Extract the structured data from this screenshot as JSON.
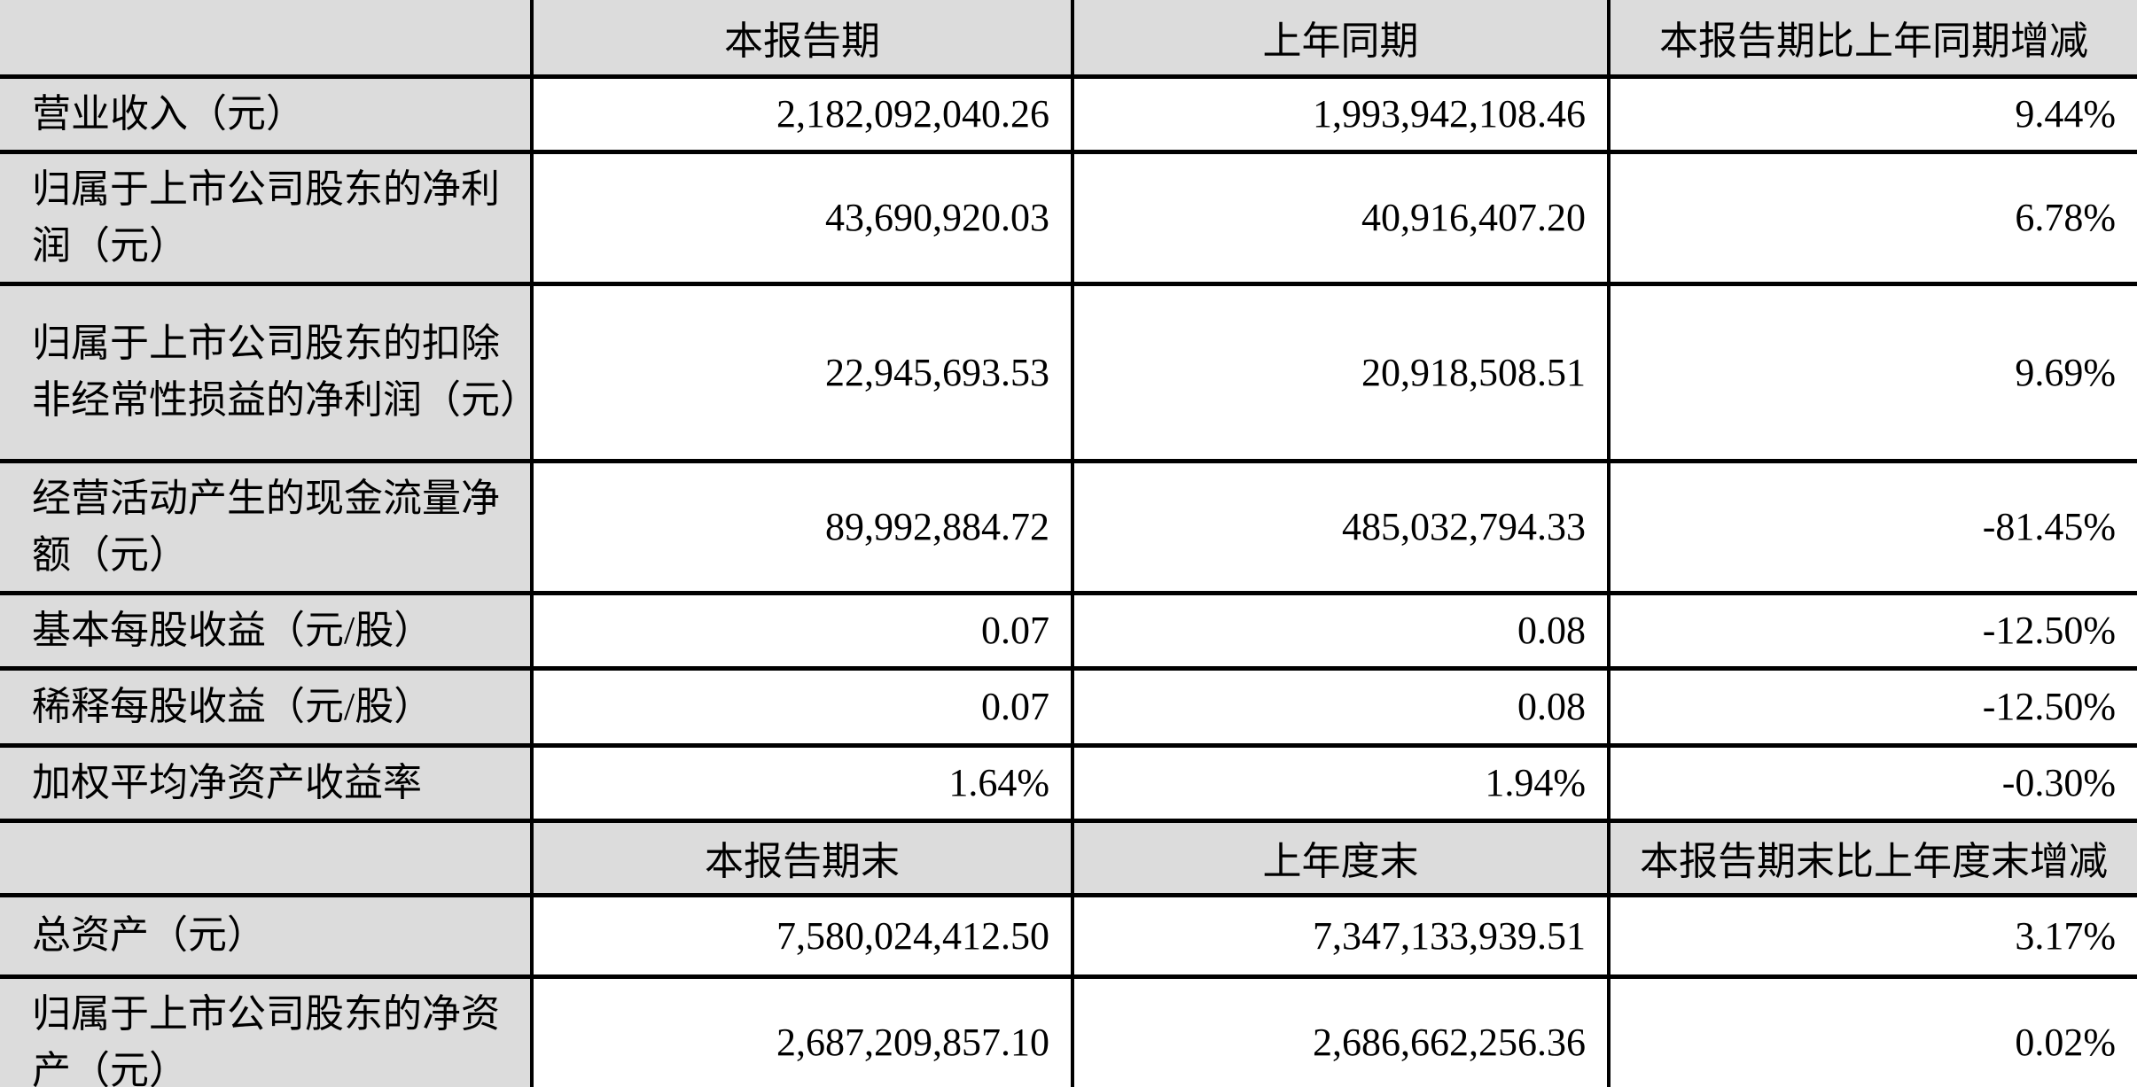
{
  "colors": {
    "header_bg": "#dcdcdc",
    "label_bg": "#dcdcdc",
    "cell_bg": "#ffffff",
    "border": "#000000",
    "text": "#000000"
  },
  "section1": {
    "headers": [
      "",
      "本报告期",
      "上年同期",
      "本报告期比上年同期增减"
    ],
    "rows": [
      {
        "label": "营业收入（元）",
        "current": "2,182,092,040.26",
        "prior": "1,993,942,108.46",
        "change": "9.44%"
      },
      {
        "label": "归属于上市公司股东的净利润（元）",
        "current": "43,690,920.03",
        "prior": "40,916,407.20",
        "change": "6.78%"
      },
      {
        "label": "归属于上市公司股东的扣除非经常性损益的净利润（元）",
        "current": "22,945,693.53",
        "prior": "20,918,508.51",
        "change": "9.69%"
      },
      {
        "label": "经营活动产生的现金流量净额（元）",
        "current": "89,992,884.72",
        "prior": "485,032,794.33",
        "change": "-81.45%"
      },
      {
        "label": "基本每股收益（元/股）",
        "current": "0.07",
        "prior": "0.08",
        "change": "-12.50%"
      },
      {
        "label": "稀释每股收益（元/股）",
        "current": "0.07",
        "prior": "0.08",
        "change": "-12.50%"
      },
      {
        "label": "加权平均净资产收益率",
        "current": "1.64%",
        "prior": "1.94%",
        "change": "-0.30%"
      }
    ]
  },
  "section2": {
    "headers": [
      "",
      "本报告期末",
      "上年度末",
      "本报告期末比上年度末增减"
    ],
    "rows": [
      {
        "label": "总资产（元）",
        "current": "7,580,024,412.50",
        "prior": "7,347,133,939.51",
        "change": "3.17%"
      },
      {
        "label": "归属于上市公司股东的净资产（元）",
        "current": "2,687,209,857.10",
        "prior": "2,686,662,256.36",
        "change": "0.02%"
      }
    ]
  }
}
